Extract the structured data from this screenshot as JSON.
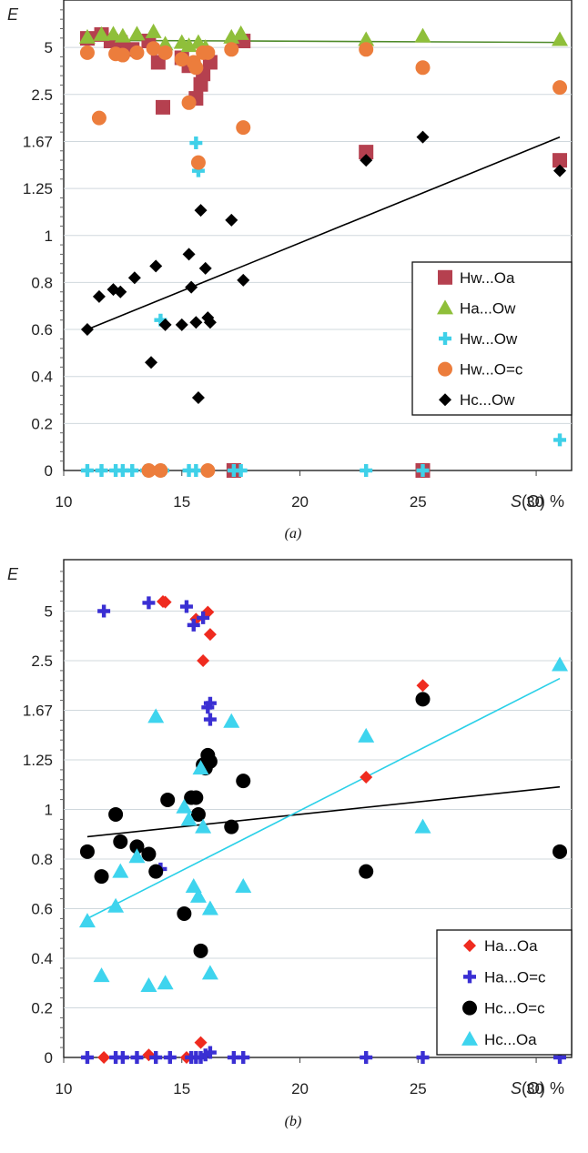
{
  "figure": {
    "colors": {
      "Hw...Oa": "#b5404f",
      "Ha...Ow": "#8fbf3a",
      "Hw...Ow": "#3fd0e8",
      "Hw...O=c": "#ec7d3c",
      "Hc...Ow": "#000000",
      "Ha...Oa": "#ef2b1f",
      "Ha...O=c": "#3a2fd3",
      "Hc...O=c": "#000000",
      "Hc...Oa": "#3ed4ee",
      "fit_black": "#000000",
      "fit_green": "#4e8a2a",
      "fit_cyan": "#2ad0e8",
      "grid": "#d0d8dd"
    }
  },
  "chart_data": [
    {
      "type": "scatter",
      "panel_label": "(a)",
      "ylabel": "E",
      "xlabel_s": "S",
      "xlabel_rest": "(O) %",
      "xlim": [
        10,
        31.5
      ],
      "x_ticks": [
        10,
        15,
        20,
        25,
        30
      ],
      "y_tick_labels": [
        "0",
        "0.2",
        "0.4",
        "0.6",
        "0.8",
        "1",
        "1.25",
        "1.67",
        "2.5",
        "5"
      ],
      "y_scale_note": "E axis: 0-1 linear, then 1.25, 1.67, 2.5, 5 equally spaced (inverse scale)",
      "legend": [
        "Hw...Oa",
        "Ha...Ow",
        "Hw...Ow",
        "Hw...O=c",
        "Hc...Ow"
      ],
      "legend_position": "lower-right",
      "fit_lines": [
        {
          "series": "Ha...Ow",
          "x": [
            11.0,
            31.0
          ],
          "y": [
            5.9,
            5.6
          ]
        },
        {
          "series": "Hc...Ow",
          "x": [
            11.0,
            31.0
          ],
          "y": [
            0.6,
            1.72
          ]
        }
      ],
      "series": [
        {
          "name": "Hw...Oa",
          "marker": "square",
          "x": [
            11.0,
            11.6,
            12.0,
            12.4,
            12.9,
            13.6,
            14.0,
            14.2,
            15.0,
            15.3,
            15.6,
            15.8,
            15.9,
            16.2,
            17.6,
            22.8,
            31.0,
            17.2,
            25.2
          ],
          "y": [
            6.2,
            6.9,
            5.8,
            5.6,
            4.8,
            5.8,
            3.8,
            2.2,
            4.1,
            3.6,
            2.4,
            2.8,
            3.2,
            3.8,
            5.8,
            1.55,
            1.47,
            0,
            0
          ]
        },
        {
          "name": "Ha...Ow",
          "marker": "triangle",
          "x": [
            11.0,
            11.6,
            12.1,
            12.5,
            13.1,
            13.8,
            14.3,
            15.0,
            15.3,
            15.7,
            16.0,
            17.1,
            17.5,
            22.8,
            25.2,
            31.0
          ],
          "y": [
            6.4,
            6.9,
            7.0,
            6.6,
            7.0,
            7.5,
            5.4,
            5.6,
            5.2,
            5.6,
            5.0,
            6.4,
            7.1,
            6.0,
            6.6,
            6.0
          ]
        },
        {
          "name": "Hw...Ow",
          "marker": "plus",
          "x": [
            15.6,
            15.7,
            14.1,
            31.0,
            11.0,
            11.6,
            12.2,
            12.5,
            12.9,
            13.5,
            14.2,
            15.3,
            15.6,
            16.1,
            17.2,
            17.5,
            22.8,
            25.2
          ],
          "y": [
            1.65,
            1.38,
            0.64,
            0.13,
            0,
            0,
            0,
            0,
            0,
            0,
            0,
            0,
            0,
            0,
            0,
            0,
            0,
            0
          ]
        },
        {
          "name": "Hw...O=c",
          "marker": "circle",
          "x": [
            11.0,
            11.5,
            12.2,
            12.5,
            13.1,
            13.8,
            14.3,
            15.0,
            15.3,
            15.5,
            15.6,
            15.7,
            15.9,
            16.1,
            17.1,
            17.6,
            22.8,
            25.2,
            31.0,
            13.6,
            14.1,
            16.1
          ],
          "y": [
            4.5,
            2.0,
            4.4,
            4.3,
            4.5,
            4.9,
            4.5,
            4.0,
            2.3,
            3.8,
            3.5,
            1.45,
            4.5,
            4.5,
            4.8,
            1.85,
            4.8,
            3.5,
            2.7,
            0,
            0,
            0
          ]
        },
        {
          "name": "Hc...Ow",
          "marker": "diamond",
          "x": [
            11.0,
            11.5,
            12.1,
            12.4,
            13.0,
            13.7,
            13.9,
            14.3,
            15.0,
            15.3,
            15.4,
            15.6,
            15.7,
            15.8,
            16.0,
            16.1,
            16.2,
            17.1,
            17.6,
            22.8,
            25.2,
            31.0
          ],
          "y": [
            0.6,
            0.74,
            0.77,
            0.76,
            0.82,
            0.46,
            0.87,
            0.62,
            0.62,
            0.92,
            0.78,
            0.63,
            0.31,
            1.12,
            0.86,
            0.65,
            0.63,
            1.07,
            0.81,
            1.47,
            1.72,
            1.38
          ]
        }
      ]
    },
    {
      "type": "scatter",
      "panel_label": "(b)",
      "ylabel": "E",
      "xlabel_s": "S",
      "xlabel_rest": "(O) %",
      "xlim": [
        10,
        31.5
      ],
      "x_ticks": [
        10,
        15,
        20,
        25,
        30
      ],
      "y_tick_labels": [
        "0",
        "0.2",
        "0.4",
        "0.6",
        "0.8",
        "1",
        "1.25",
        "1.67",
        "2.5",
        "5"
      ],
      "y_scale_note": "E axis: 0-1 linear, then 1.25, 1.67, 2.5, 5 equally spaced (inverse scale)",
      "legend": [
        "Ha...Oa",
        "Ha...O=c",
        "Hc...O=c",
        "Hc...Oa"
      ],
      "legend_position": "lower-right",
      "fit_lines": [
        {
          "series": "Hc...O=c",
          "x": [
            11.0,
            31.0
          ],
          "y": [
            0.89,
            1.1
          ]
        },
        {
          "series": "Hc...Oa",
          "x": [
            11.0,
            31.0
          ],
          "y": [
            0.56,
            2.12
          ]
        }
      ],
      "series": [
        {
          "name": "Ha...Oa",
          "marker": "diamond",
          "x": [
            14.2,
            14.3,
            15.6,
            16.1,
            16.2,
            15.9,
            22.8,
            25.2,
            11.7,
            13.6,
            15.2,
            15.8
          ],
          "y": [
            6.2,
            6.1,
            4.3,
            4.9,
            3.4,
            2.5,
            1.15,
            2.0,
            0,
            0.01,
            0,
            0.06
          ]
        },
        {
          "name": "Ha...O=c",
          "marker": "plus",
          "x": [
            11.7,
            13.6,
            15.2,
            15.5,
            15.9,
            16.1,
            16.2,
            16.2,
            14.1,
            11.0,
            12.2,
            12.5,
            13.1,
            13.9,
            14.5,
            15.4,
            15.6,
            15.8,
            16.0,
            16.2,
            17.2,
            17.6,
            22.8,
            25.2,
            31.0
          ],
          "y": [
            5.0,
            6.0,
            5.5,
            3.9,
            4.4,
            1.7,
            1.57,
            1.75,
            0.76,
            0,
            0,
            0,
            0,
            0,
            0,
            0,
            0,
            0,
            0.01,
            0.02,
            0,
            0,
            0,
            0,
            0
          ]
        },
        {
          "name": "Hc...O=c",
          "marker": "circle",
          "x": [
            11.0,
            11.6,
            12.2,
            12.4,
            13.1,
            13.6,
            13.9,
            14.4,
            15.1,
            15.4,
            15.6,
            15.7,
            15.9,
            16.0,
            16.1,
            16.2,
            17.1,
            17.6,
            22.8,
            25.2,
            31.0,
            15.8
          ],
          "y": [
            0.83,
            0.73,
            0.98,
            0.87,
            0.85,
            0.82,
            0.75,
            1.04,
            0.58,
            1.05,
            1.05,
            0.98,
            1.22,
            1.2,
            1.28,
            1.24,
            0.93,
            1.13,
            0.75,
            1.8,
            0.83,
            0.43
          ]
        },
        {
          "name": "Hc...Oa",
          "marker": "triangle",
          "x": [
            11.0,
            11.6,
            12.2,
            12.4,
            13.1,
            13.6,
            13.9,
            14.3,
            15.1,
            15.3,
            15.5,
            15.7,
            15.8,
            15.9,
            16.2,
            16.2,
            17.1,
            17.6,
            22.8,
            25.2,
            31.0
          ],
          "y": [
            0.55,
            0.33,
            0.61,
            0.75,
            0.81,
            0.29,
            1.6,
            0.3,
            1.01,
            0.96,
            0.69,
            0.65,
            1.2,
            0.93,
            0.6,
            0.34,
            1.55,
            0.69,
            1.42,
            0.93,
            2.4
          ]
        }
      ]
    }
  ]
}
